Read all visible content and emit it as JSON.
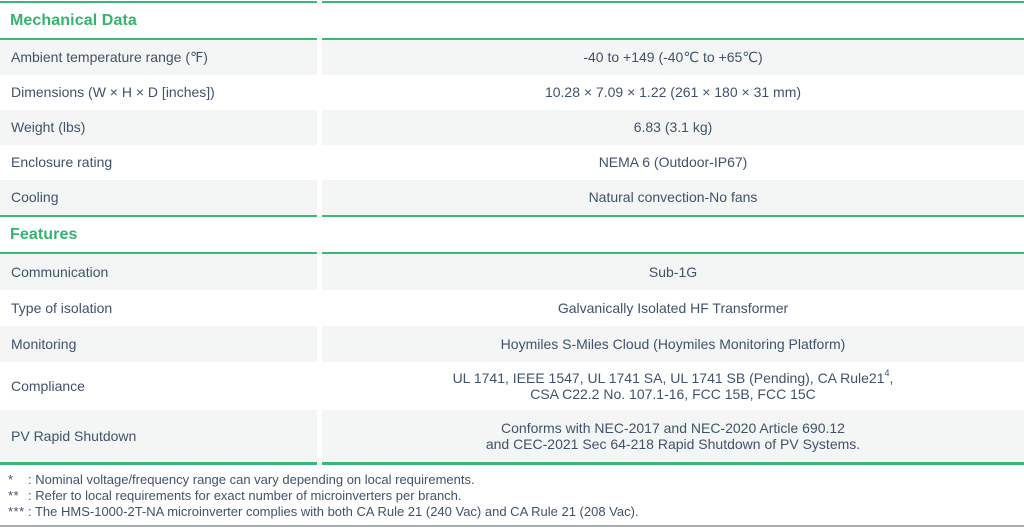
{
  "colors": {
    "accent_green": "#3eb57a",
    "section_title_green": "#35b470",
    "row_alt_bg": "#f3f6f5",
    "text": "#42526b",
    "bottom_divider": "#a9aeb2"
  },
  "sections": [
    {
      "title": "Mechanical Data",
      "rows": [
        {
          "label": "Ambient temperature range (℉)",
          "value": "-40 to +149 (-40℃ to +65℃)"
        },
        {
          "label": "Dimensions (W × H × D [inches])",
          "value": "10.28 × 7.09 × 1.22 (261 × 180 × 31 mm)"
        },
        {
          "label": "Weight (lbs)",
          "value": "6.83 (3.1 kg)"
        },
        {
          "label": "Enclosure rating",
          "value": "NEMA 6 (Outdoor-IP67)"
        },
        {
          "label": "Cooling",
          "value": "Natural convection-No fans"
        }
      ]
    },
    {
      "title": "Features",
      "rows": [
        {
          "label": "Communication",
          "value": "Sub-1G"
        },
        {
          "label": "Type of isolation",
          "value": "Galvanically Isolated HF Transformer"
        },
        {
          "label": "Monitoring",
          "value": "Hoymiles S-Miles Cloud (Hoymiles Monitoring Platform)"
        },
        {
          "label": "Compliance",
          "value_pre": "UL 1741, IEEE 1547, UL 1741 SA, UL 1741 SB (Pending), CA Rule21",
          "value_sup": "4",
          "value_post": ",",
          "value2": "CSA C22.2 No. 107.1-16, FCC 15B, FCC 15C"
        },
        {
          "label": "PV Rapid Shutdown",
          "value": "Conforms with NEC-2017 and NEC-2020 Article 690.12",
          "value2": "and CEC-2021 Sec 64-218 Rapid Shutdown of PV Systems."
        }
      ]
    }
  ],
  "footnotes": [
    {
      "marker": "*",
      "text": ": Nominal voltage/frequency range can vary depending on local requirements."
    },
    {
      "marker": "**",
      "text": ": Refer to local requirements for exact number of microinverters per branch."
    },
    {
      "marker": "***",
      "text": ": The HMS-1000-2T-NA microinverter complies with both CA Rule 21 (240 Vac) and CA Rule 21 (208 Vac)."
    }
  ]
}
